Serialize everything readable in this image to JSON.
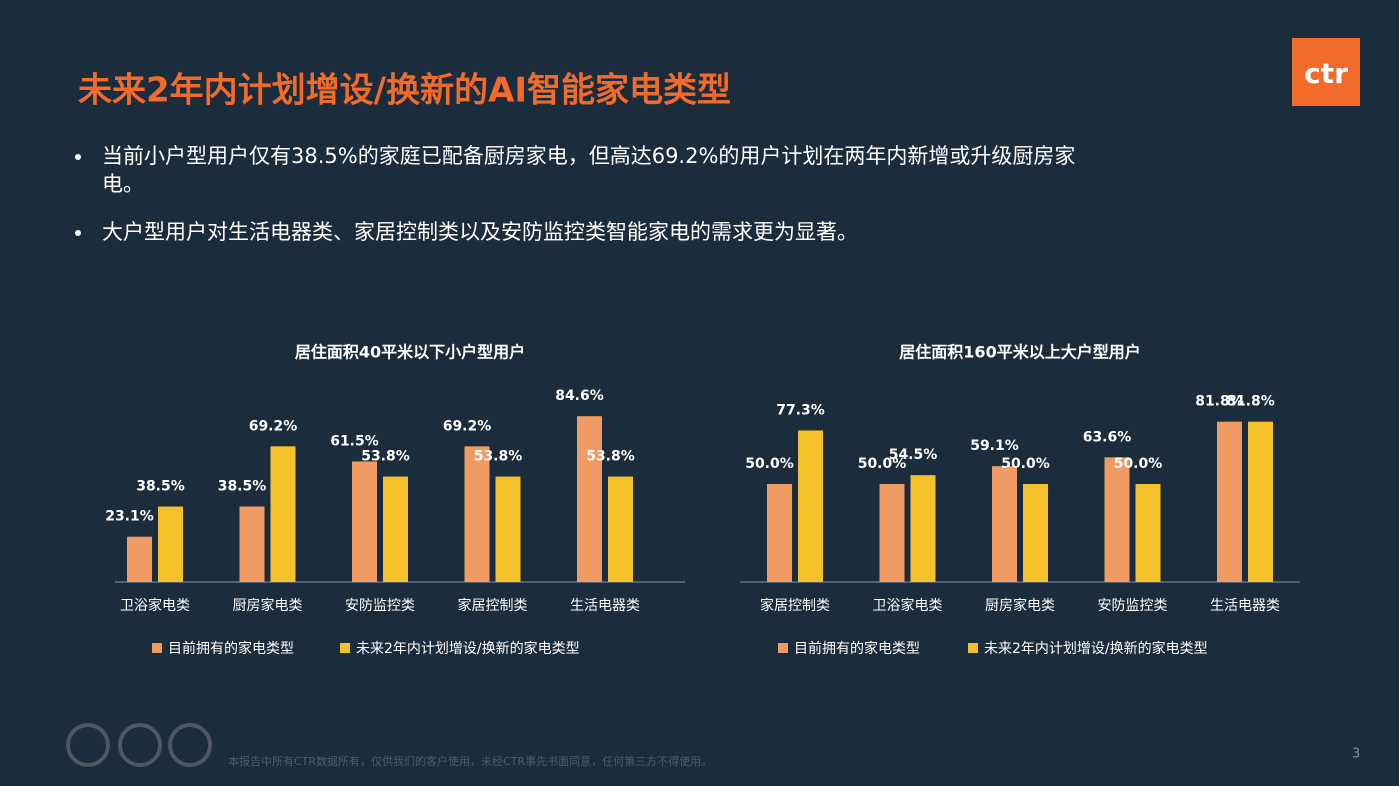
{
  "header": {
    "title": "未来2年内计划增设/换新的AI智能家电类型",
    "logo": "ctr"
  },
  "bullets": [
    "当前小户型用户仅有38.5%的家庭已配备厨房家电，但高达69.2%的用户计划在两年内新增或升级厨房家",
    "电。",
    "大户型用户对生活电器类、家居控制类以及安防监控类智能家电的需求更为显著。"
  ],
  "chart_data": [
    {
      "type": "bar",
      "title": "居住面积40平米以下小户型用户",
      "categories": [
        "卫浴家电类",
        "厨房家电类",
        "安防监控类",
        "家居控制类",
        "生活电器类"
      ],
      "series": [
        {
          "name": "目前拥有的家电类型",
          "color": "#f09a64",
          "values": [
            23.1,
            38.5,
            61.5,
            69.2,
            84.6
          ],
          "value_labels": [
            "23.1%",
            "38.5%",
            "61.5%",
            "69.2%",
            "84.6%"
          ]
        },
        {
          "name": "未来2年内计划增设/换新的家电类型",
          "color": "#f5c12a",
          "values": [
            38.5,
            69.2,
            53.8,
            53.8,
            53.8
          ],
          "value_labels": [
            "38.5%",
            "69.2%",
            "53.8%",
            "53.8%",
            "53.8%"
          ]
        }
      ]
    },
    {
      "type": "bar",
      "title": "居住面积160平米以上大户型用户",
      "categories": [
        "家居控制类",
        "卫浴家电类",
        "厨房家电类",
        "安防监控类",
        "生活电器类"
      ],
      "series": [
        {
          "name": "目前拥有的家电类型",
          "color": "#f09a64",
          "values": [
            50.0,
            50.0,
            59.1,
            63.6,
            81.8
          ],
          "value_labels": [
            "50.0%",
            "50.0%",
            "59.1%",
            "63.6%",
            "81.8%"
          ]
        },
        {
          "name": "未来2年内计划增设/换新的家电类型",
          "color": "#f5c12a",
          "values": [
            77.3,
            54.5,
            50.0,
            50.0,
            81.8
          ],
          "value_labels": [
            "77.3%",
            "54.5%",
            "50.0%",
            "50.0%",
            "81.8%"
          ]
        }
      ]
    }
  ],
  "footer": {
    "note": "本报告中所有CTR数据所有，仅供我们的客户使用，未经CTR事先书面同意，任何第三方不得使用。",
    "page": "3"
  }
}
